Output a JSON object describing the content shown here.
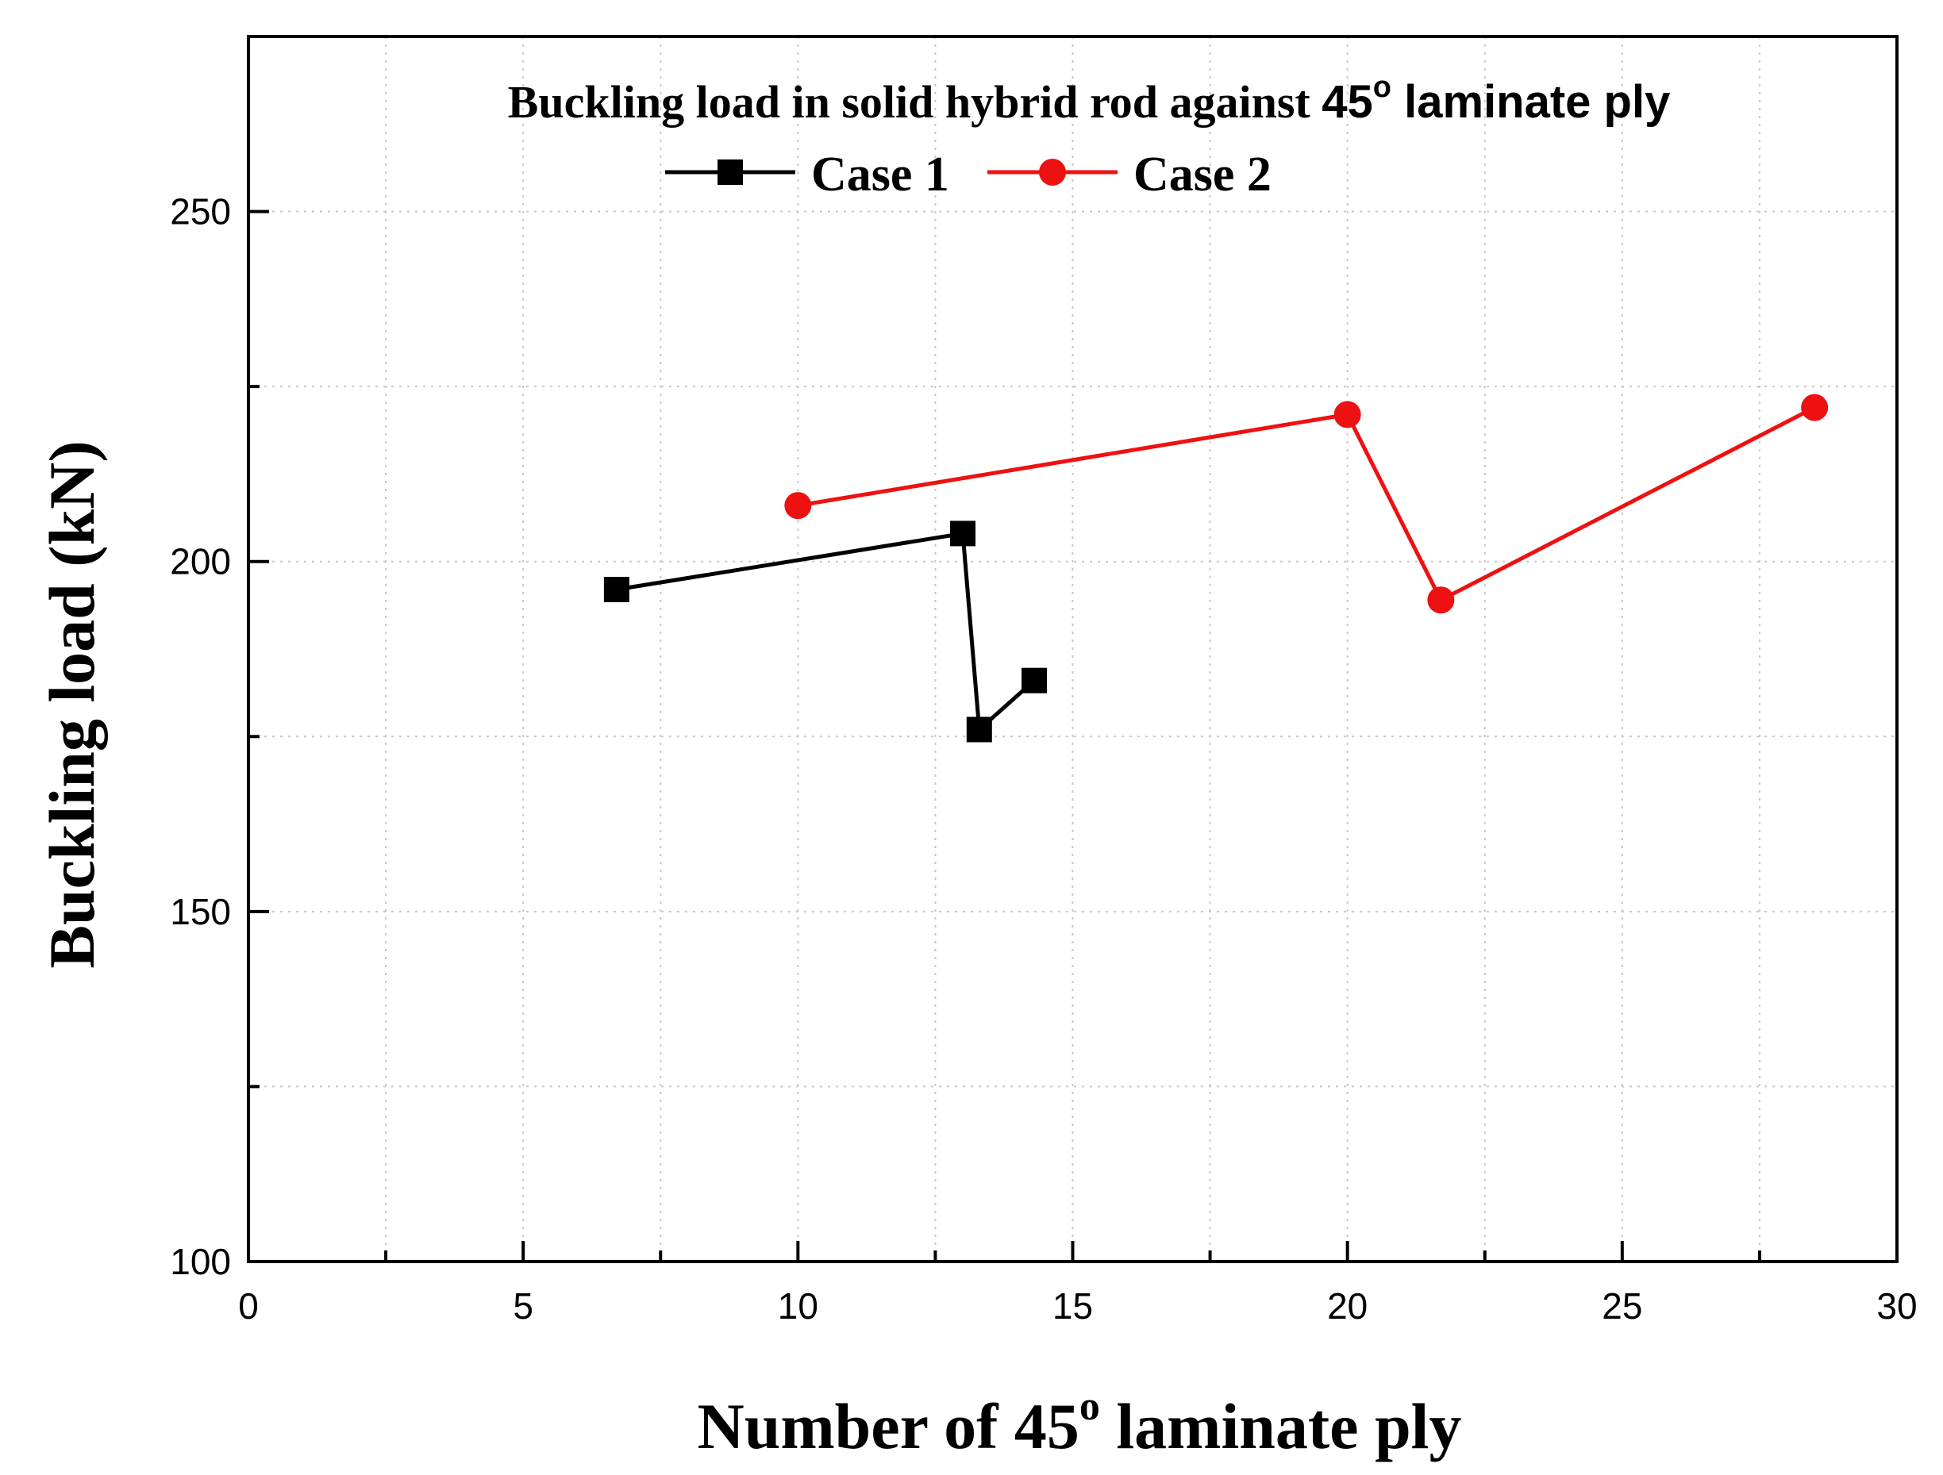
{
  "chart_data": {
    "type": "line",
    "title": {
      "main": "Buckling load in solid hybrid rod against ",
      "angle": "45",
      "superscript": "o",
      "suffix": " laminate ply"
    },
    "xlabel": {
      "prefix": "Number of ",
      "angle": "45",
      "superscript": "o",
      "suffix": " laminate ply"
    },
    "ylabel": "Buckling load (kN)",
    "xlim": [
      0,
      30
    ],
    "ylim": [
      100,
      275
    ],
    "xticks": [
      0,
      5,
      10,
      15,
      20,
      25,
      30
    ],
    "yticks": [
      100,
      150,
      200,
      250
    ],
    "grid": true,
    "legend_position": "top-center",
    "series": [
      {
        "name": "Case 1",
        "color": "#000000",
        "marker": "square",
        "x": [
          6.7,
          13.0,
          13.3,
          14.3
        ],
        "y": [
          196,
          204,
          176,
          183
        ]
      },
      {
        "name": "Case 2",
        "color": "#ee1111",
        "marker": "circle",
        "x": [
          10.0,
          20.0,
          21.7,
          28.5
        ],
        "y": [
          208,
          221,
          194.5,
          222
        ]
      }
    ]
  }
}
